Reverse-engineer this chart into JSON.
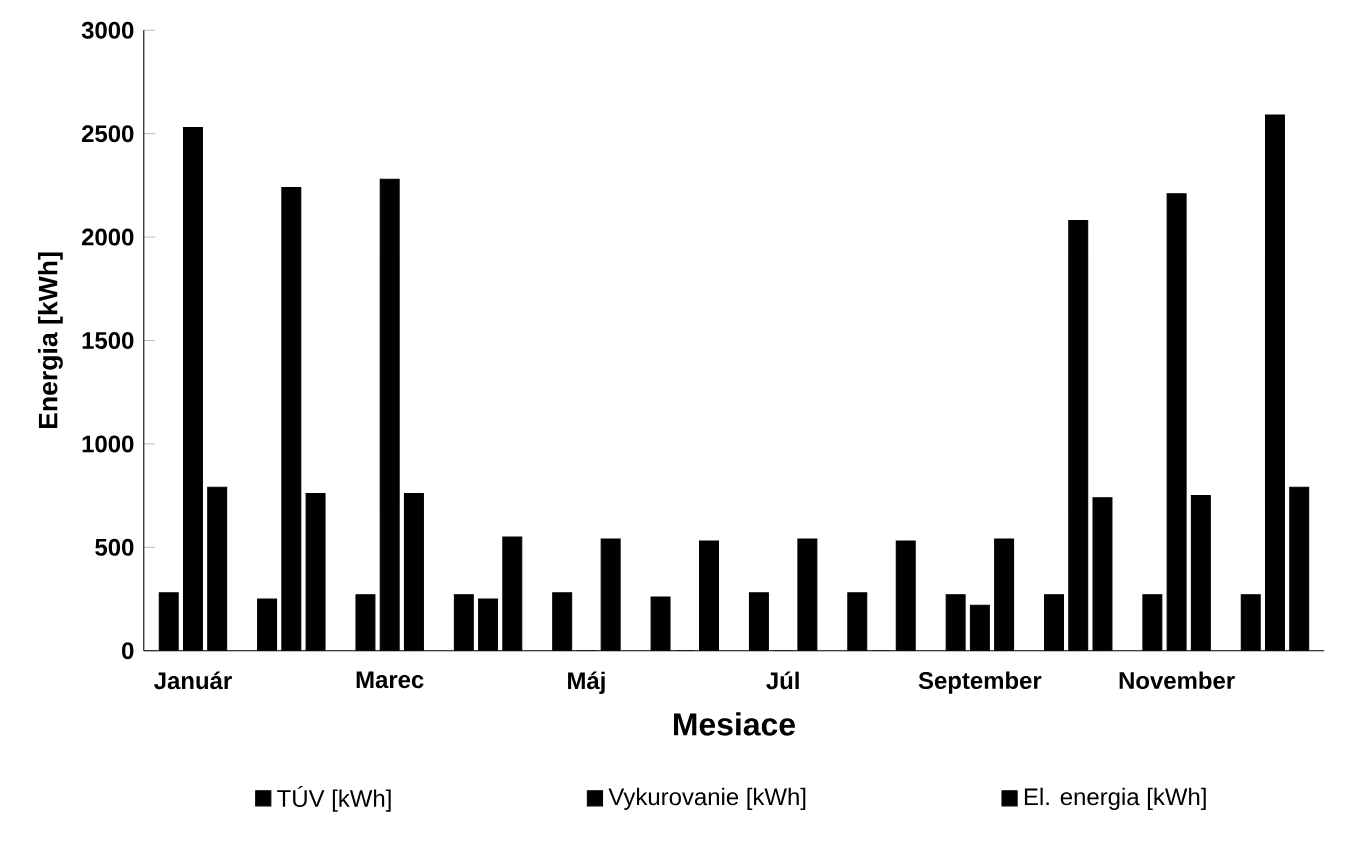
{
  "chart_data": {
    "type": "bar",
    "xlabel": "Mesiace",
    "ylabel": "Energia [kWh]",
    "categories": [
      "Január",
      null,
      "Marec",
      null,
      "Máj",
      null,
      "Júl",
      null,
      "September",
      null,
      "November",
      null
    ],
    "series": [
      {
        "name": "TÚV [kWh]",
        "color": "#000000",
        "values": [
          280,
          250,
          270,
          270,
          280,
          260,
          280,
          280,
          270,
          270,
          270,
          270
        ]
      },
      {
        "name": "Vykurovanie [kWh]",
        "color": "#000000",
        "values": [
          2530,
          2240,
          2280,
          250,
          0,
          0,
          0,
          0,
          220,
          2080,
          2210,
          2590
        ]
      },
      {
        "name": "El. energia [kWh]",
        "color": "#000000",
        "values": [
          790,
          760,
          760,
          550,
          540,
          530,
          540,
          530,
          540,
          740,
          750,
          790
        ]
      }
    ],
    "ylim": [
      0,
      3000
    ],
    "yticks": [
      0,
      500,
      1000,
      1500,
      2000,
      2500,
      3000
    ],
    "grid": false,
    "legend": "bottom"
  }
}
